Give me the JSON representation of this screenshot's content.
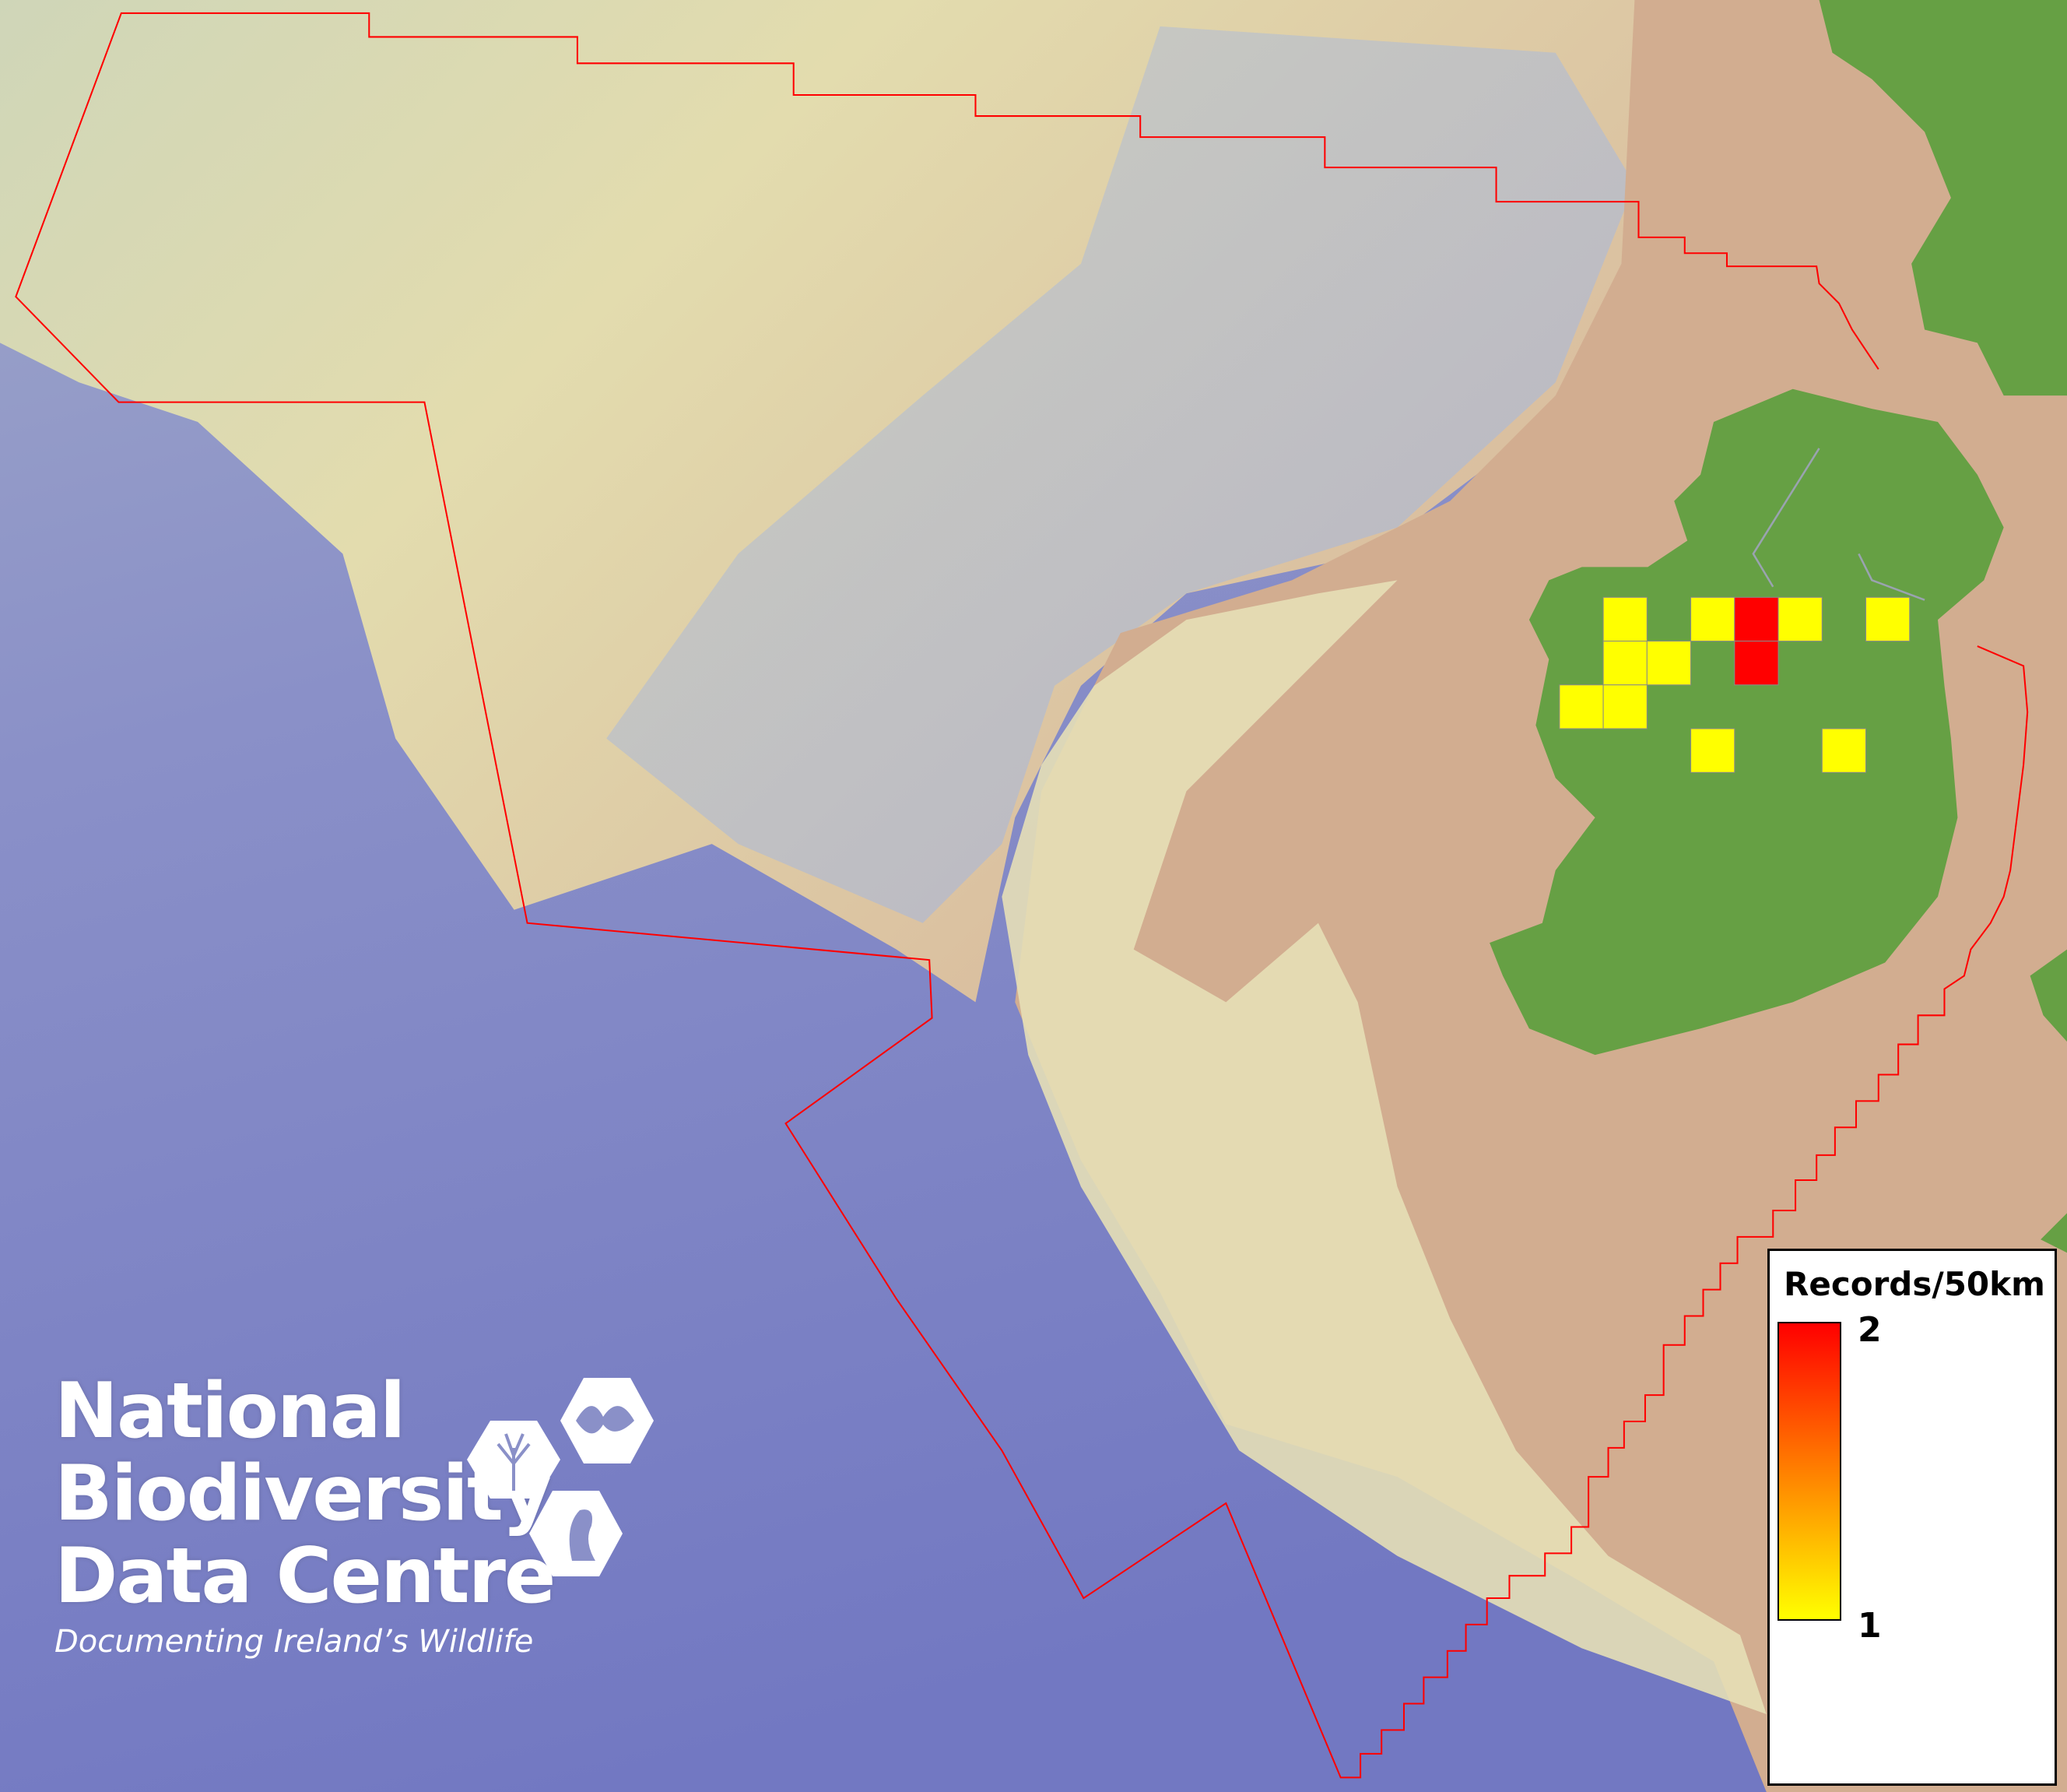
{
  "legend": {
    "title": "Records/50km",
    "max_label": "2",
    "min_label": "1",
    "color_low": "#ffff00",
    "color_high": "#ff0000"
  },
  "logo": {
    "line1": "National",
    "line2": "Biodiversity",
    "line3": "Data Centre",
    "tagline": "Documenting Ireland’s Wildlife",
    "icons": [
      "tree-icon",
      "butterfly-icon",
      "seahorse-icon"
    ]
  },
  "grid_cells": [
    {
      "row": 0,
      "col": 1,
      "records": 1
    },
    {
      "row": 0,
      "col": 3,
      "records": 1
    },
    {
      "row": 0,
      "col": 4,
      "records": 2
    },
    {
      "row": 0,
      "col": 5,
      "records": 1
    },
    {
      "row": 0,
      "col": 7,
      "records": 1
    },
    {
      "row": 1,
      "col": 1,
      "records": 1
    },
    {
      "row": 1,
      "col": 2,
      "records": 1
    },
    {
      "row": 1,
      "col": 4,
      "records": 2
    },
    {
      "row": 2,
      "col": 0,
      "records": 1
    },
    {
      "row": 2,
      "col": 1,
      "records": 1
    },
    {
      "row": 3,
      "col": 3,
      "records": 1
    },
    {
      "row": 3,
      "col": 6,
      "records": 1
    }
  ],
  "colors": {
    "boundary": "#ff0000",
    "land": "#66a044",
    "shelf": "#d2ad90",
    "deep_ocean": "#7b82c6"
  }
}
